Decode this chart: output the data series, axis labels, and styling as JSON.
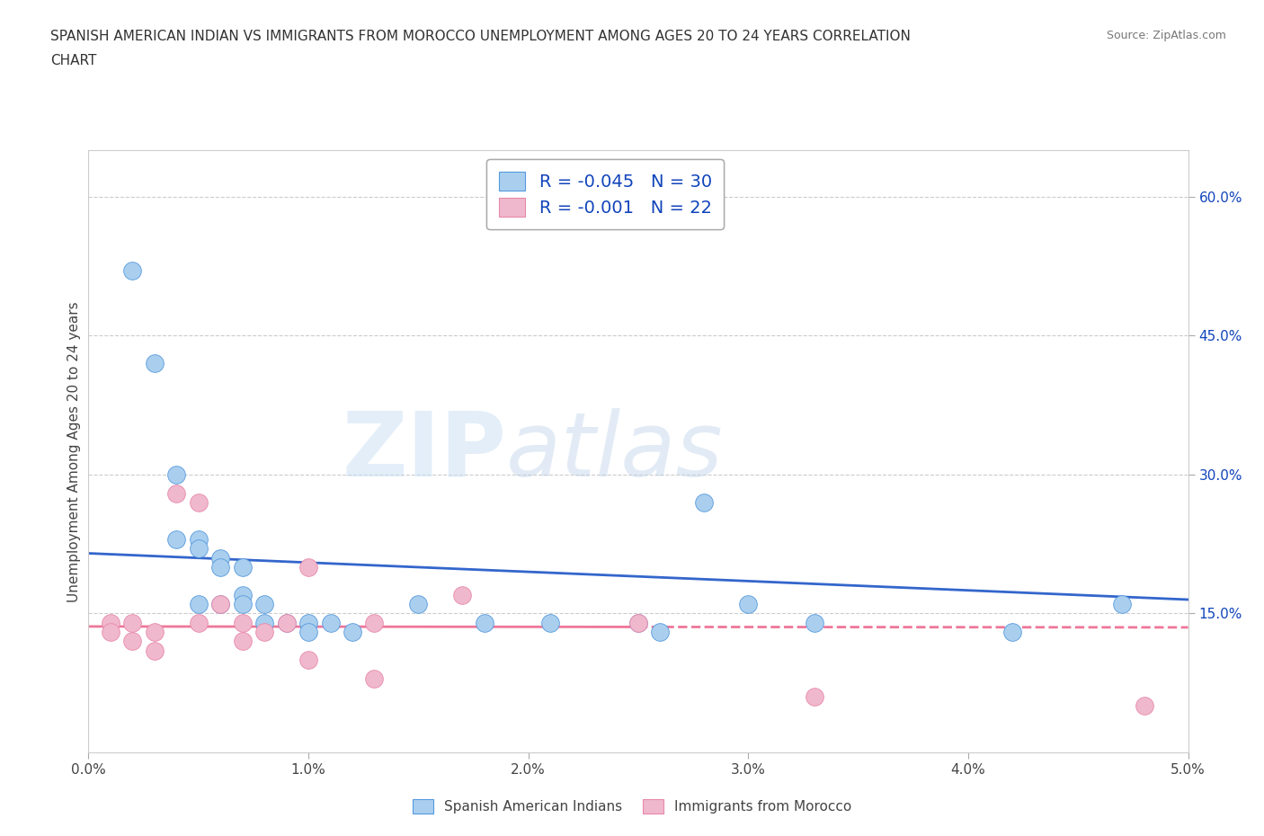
{
  "title_line1": "SPANISH AMERICAN INDIAN VS IMMIGRANTS FROM MOROCCO UNEMPLOYMENT AMONG AGES 20 TO 24 YEARS CORRELATION",
  "title_line2": "CHART",
  "source_text": "Source: ZipAtlas.com",
  "ylabel": "Unemployment Among Ages 20 to 24 years",
  "xlim": [
    0.0,
    0.05
  ],
  "ylim": [
    0.0,
    0.65
  ],
  "xtick_labels": [
    "0.0%",
    "1.0%",
    "2.0%",
    "3.0%",
    "4.0%",
    "5.0%"
  ],
  "xtick_values": [
    0.0,
    0.01,
    0.02,
    0.03,
    0.04,
    0.05
  ],
  "ytick_labels": [
    "15.0%",
    "30.0%",
    "45.0%",
    "60.0%"
  ],
  "ytick_values": [
    0.15,
    0.3,
    0.45,
    0.6
  ],
  "watermark_zip": "ZIP",
  "watermark_atlas": "atlas",
  "legend_line1": "R = -0.045   N = 30",
  "legend_line2": "R = -0.001   N = 22",
  "series1_label": "Spanish American Indians",
  "series2_label": "Immigrants from Morocco",
  "series1_color": "#aacfee",
  "series2_color": "#f0b8cc",
  "series1_edge_color": "#5599dd",
  "series2_edge_color": "#e888aa",
  "series1_line_color": "#3366cc",
  "series2_line_color": "#ee7799",
  "background_color": "#ffffff",
  "grid_color": "#cccccc",
  "blue_text_color": "#1144bb",
  "dark_text_color": "#222222",
  "series1_x": [
    0.002,
    0.003,
    0.004,
    0.004,
    0.005,
    0.005,
    0.005,
    0.006,
    0.006,
    0.006,
    0.007,
    0.007,
    0.007,
    0.008,
    0.008,
    0.009,
    0.01,
    0.01,
    0.011,
    0.012,
    0.015,
    0.018,
    0.021,
    0.025,
    0.026,
    0.028,
    0.03,
    0.033,
    0.042,
    0.047
  ],
  "series1_y": [
    0.52,
    0.42,
    0.3,
    0.23,
    0.23,
    0.22,
    0.16,
    0.21,
    0.2,
    0.16,
    0.2,
    0.17,
    0.16,
    0.14,
    0.16,
    0.14,
    0.14,
    0.13,
    0.14,
    0.13,
    0.16,
    0.14,
    0.14,
    0.14,
    0.13,
    0.27,
    0.16,
    0.14,
    0.13,
    0.16
  ],
  "series2_x": [
    0.001,
    0.001,
    0.002,
    0.002,
    0.003,
    0.003,
    0.004,
    0.005,
    0.005,
    0.006,
    0.007,
    0.007,
    0.008,
    0.009,
    0.01,
    0.01,
    0.013,
    0.013,
    0.017,
    0.025,
    0.033,
    0.048
  ],
  "series2_y": [
    0.14,
    0.13,
    0.14,
    0.12,
    0.13,
    0.11,
    0.28,
    0.27,
    0.14,
    0.16,
    0.14,
    0.12,
    0.13,
    0.14,
    0.2,
    0.1,
    0.14,
    0.08,
    0.17,
    0.14,
    0.06,
    0.05
  ],
  "series1_trend_x": [
    0.0,
    0.05
  ],
  "series1_trend_y": [
    0.215,
    0.165
  ],
  "series2_trend_x": [
    0.0,
    0.05
  ],
  "series2_trend_y": [
    0.136,
    0.135
  ]
}
